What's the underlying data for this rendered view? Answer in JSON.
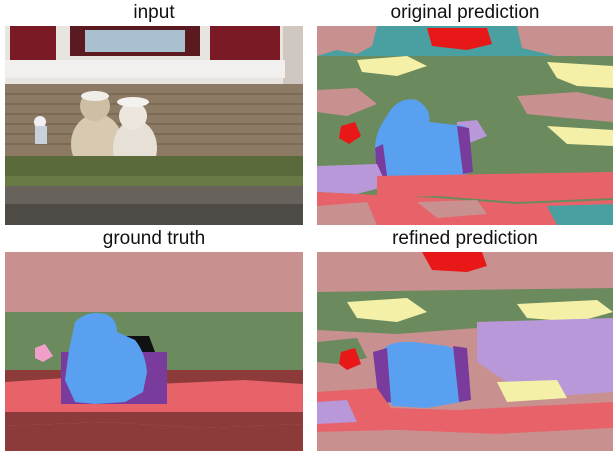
{
  "captions": {
    "input": "input",
    "original": "original prediction",
    "ground_truth": "ground truth",
    "refined": "refined prediction"
  },
  "colors": {
    "wall_pink": "#c99090",
    "grass_green": "#6b8a5e",
    "road_red": "#e8626a",
    "dark_red": "#8c3a3a",
    "bear_blue": "#5aa0f0",
    "bench_purple": "#7a3c9c",
    "lavender": "#b898d8",
    "pale_yellow": "#f4f0a8",
    "teal": "#4aa0a0",
    "bright_red": "#e81818"
  }
}
